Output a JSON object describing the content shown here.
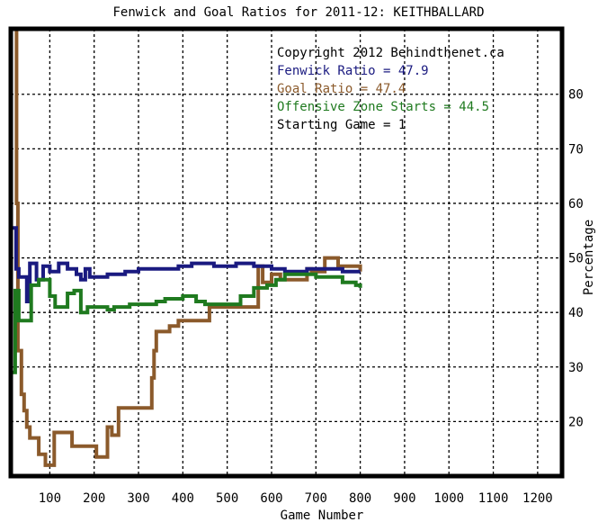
{
  "chart_data": {
    "type": "line",
    "title": "Fenwick and Goal Ratios for 2011-12: KEITHBALLARD",
    "xlabel": "Game Number",
    "ylabel": "Percentage",
    "xlim": [
      12,
      1255
    ],
    "ylim": [
      10,
      92
    ],
    "xticks": [
      100,
      200,
      300,
      400,
      500,
      600,
      700,
      800,
      900,
      1000,
      1100,
      1200
    ],
    "yticks": [
      20,
      30,
      40,
      50,
      60,
      70,
      80
    ],
    "grid": true,
    "legend_position": "top-right",
    "legend": [
      {
        "text": "Copyright 2012 Behindthenet.ca",
        "color": "#000000"
      },
      {
        "text": "Fenwick Ratio = 47.9",
        "color": "#1a1a80"
      },
      {
        "text": "Goal Ratio = 47.4",
        "color": "#8b5a2b"
      },
      {
        "text": "Offensive Zone Starts = 44.5",
        "color": "#1f7a1f"
      },
      {
        "text": "Starting Game = 1",
        "color": "#000000"
      }
    ],
    "series": [
      {
        "color": "#1a1a80",
        "points": [
          [
            12,
            55.5
          ],
          [
            24,
            55.5
          ],
          [
            24,
            48
          ],
          [
            30,
            48
          ],
          [
            30,
            46.5
          ],
          [
            48,
            46.5
          ],
          [
            48,
            42
          ],
          [
            55,
            42
          ],
          [
            55,
            49
          ],
          [
            70,
            49
          ],
          [
            70,
            46
          ],
          [
            85,
            46
          ],
          [
            85,
            48.5
          ],
          [
            100,
            48.5
          ],
          [
            100,
            47.5
          ],
          [
            120,
            47.5
          ],
          [
            120,
            49
          ],
          [
            140,
            49
          ],
          [
            140,
            48
          ],
          [
            160,
            48
          ],
          [
            160,
            47
          ],
          [
            170,
            47
          ],
          [
            170,
            46
          ],
          [
            180,
            46
          ],
          [
            180,
            48
          ],
          [
            190,
            48
          ],
          [
            190,
            46.5
          ],
          [
            230,
            46.5
          ],
          [
            230,
            47
          ],
          [
            270,
            47
          ],
          [
            270,
            47.5
          ],
          [
            300,
            47.5
          ],
          [
            300,
            48
          ],
          [
            390,
            48
          ],
          [
            390,
            48.5
          ],
          [
            420,
            48.5
          ],
          [
            420,
            49
          ],
          [
            470,
            49
          ],
          [
            470,
            48.5
          ],
          [
            520,
            48.5
          ],
          [
            520,
            49
          ],
          [
            560,
            49
          ],
          [
            560,
            48.5
          ],
          [
            600,
            48.5
          ],
          [
            600,
            48
          ],
          [
            630,
            48
          ],
          [
            630,
            47.5
          ],
          [
            680,
            47.5
          ],
          [
            680,
            48
          ],
          [
            760,
            48
          ],
          [
            760,
            47.5
          ],
          [
            800,
            47.5
          ]
        ]
      },
      {
        "color": "#8b5a2b",
        "points": [
          [
            25,
            92
          ],
          [
            25,
            60
          ],
          [
            28,
            60
          ],
          [
            28,
            33
          ],
          [
            36,
            33
          ],
          [
            36,
            25
          ],
          [
            42,
            25
          ],
          [
            42,
            22
          ],
          [
            48,
            22
          ],
          [
            48,
            19
          ],
          [
            55,
            19
          ],
          [
            55,
            17
          ],
          [
            75,
            17
          ],
          [
            75,
            14
          ],
          [
            90,
            14
          ],
          [
            90,
            12
          ],
          [
            110,
            12
          ],
          [
            110,
            18
          ],
          [
            150,
            18
          ],
          [
            150,
            15.5
          ],
          [
            205,
            15.5
          ],
          [
            205,
            13.5
          ],
          [
            230,
            13.5
          ],
          [
            230,
            19
          ],
          [
            240,
            19
          ],
          [
            240,
            17.5
          ],
          [
            255,
            17.5
          ],
          [
            255,
            22.5
          ],
          [
            330,
            22.5
          ],
          [
            330,
            28
          ],
          [
            335,
            28
          ],
          [
            335,
            33
          ],
          [
            340,
            33
          ],
          [
            340,
            36.5
          ],
          [
            370,
            36.5
          ],
          [
            370,
            37.5
          ],
          [
            390,
            37.5
          ],
          [
            390,
            38.5
          ],
          [
            460,
            38.5
          ],
          [
            460,
            41
          ],
          [
            570,
            41
          ],
          [
            570,
            48.5
          ],
          [
            580,
            48.5
          ],
          [
            580,
            45.5
          ],
          [
            600,
            45.5
          ],
          [
            600,
            47
          ],
          [
            620,
            47
          ],
          [
            620,
            46
          ],
          [
            680,
            46
          ],
          [
            680,
            48
          ],
          [
            690,
            48
          ],
          [
            690,
            47.5
          ],
          [
            720,
            47.5
          ],
          [
            720,
            50
          ],
          [
            750,
            50
          ],
          [
            750,
            48.5
          ],
          [
            800,
            48.5
          ],
          [
            800,
            47.5
          ]
        ]
      },
      {
        "color": "#1f7a1f",
        "points": [
          [
            12,
            29
          ],
          [
            22,
            29
          ],
          [
            22,
            44
          ],
          [
            30,
            44
          ],
          [
            30,
            38.5
          ],
          [
            58,
            38.5
          ],
          [
            58,
            45
          ],
          [
            75,
            45
          ],
          [
            75,
            46
          ],
          [
            100,
            46
          ],
          [
            100,
            43
          ],
          [
            112,
            43
          ],
          [
            112,
            41
          ],
          [
            140,
            41
          ],
          [
            140,
            43.5
          ],
          [
            155,
            43.5
          ],
          [
            155,
            44
          ],
          [
            170,
            44
          ],
          [
            170,
            40
          ],
          [
            185,
            40
          ],
          [
            185,
            41
          ],
          [
            230,
            41
          ],
          [
            230,
            40.5
          ],
          [
            245,
            40.5
          ],
          [
            245,
            41
          ],
          [
            280,
            41
          ],
          [
            280,
            41.5
          ],
          [
            340,
            41.5
          ],
          [
            340,
            42
          ],
          [
            360,
            42
          ],
          [
            360,
            42.5
          ],
          [
            400,
            42.5
          ],
          [
            400,
            43
          ],
          [
            430,
            43
          ],
          [
            430,
            42
          ],
          [
            450,
            42
          ],
          [
            450,
            41.5
          ],
          [
            530,
            41.5
          ],
          [
            530,
            43
          ],
          [
            560,
            43
          ],
          [
            560,
            44.5
          ],
          [
            590,
            44.5
          ],
          [
            590,
            45
          ],
          [
            610,
            45
          ],
          [
            610,
            46
          ],
          [
            630,
            46
          ],
          [
            630,
            47
          ],
          [
            700,
            47
          ],
          [
            700,
            46.5
          ],
          [
            760,
            46.5
          ],
          [
            760,
            45.5
          ],
          [
            790,
            45.5
          ],
          [
            790,
            45
          ],
          [
            800,
            45
          ],
          [
            800,
            44.5
          ]
        ]
      }
    ]
  }
}
